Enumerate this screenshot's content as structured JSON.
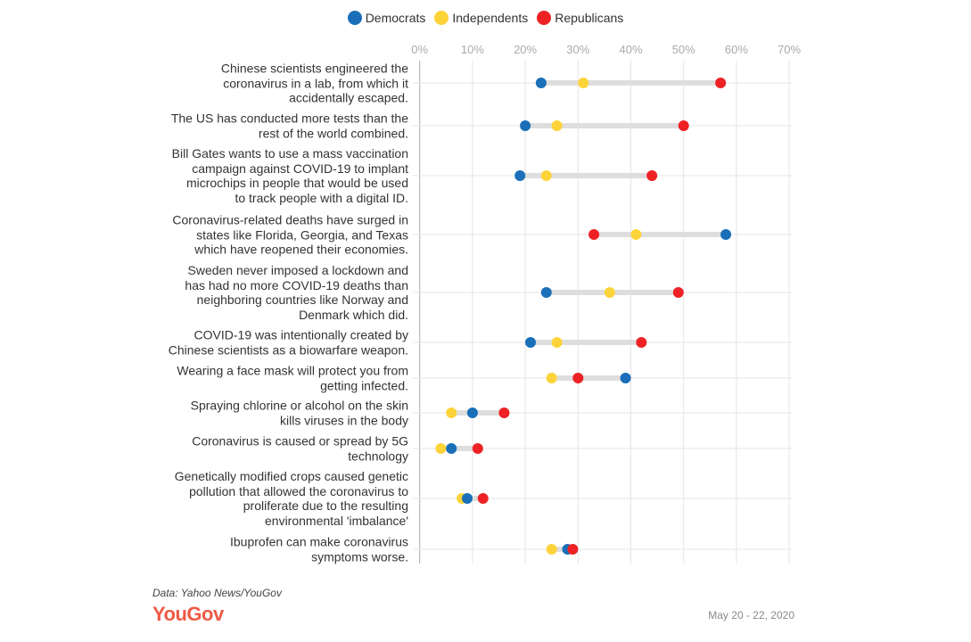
{
  "chart_data": {
    "type": "dot",
    "title": "",
    "xlabel": "",
    "ylabel": "",
    "xlim": [
      0,
      70
    ],
    "x_ticks": [
      "0%",
      "10%",
      "20%",
      "30%",
      "40%",
      "50%",
      "60%",
      "70%"
    ],
    "grid": true,
    "legend_position": "top",
    "series": [
      {
        "name": "Democrats",
        "color": "#1a6fb8",
        "values": [
          23,
          20,
          19,
          58,
          24,
          21,
          39,
          10,
          6,
          9,
          28
        ]
      },
      {
        "name": "Independents",
        "color": "#fdd33a",
        "values": [
          31,
          26,
          24,
          41,
          36,
          26,
          25,
          6,
          4,
          8,
          25
        ]
      },
      {
        "name": "Republicans",
        "color": "#ee2224",
        "values": [
          57,
          50,
          44,
          33,
          49,
          42,
          30,
          16,
          11,
          12,
          29
        ]
      }
    ],
    "categories": [
      "Chinese scientists engineered the\ncoronavirus in a lab, from which it\naccidentally escaped.",
      "The US has conducted more tests than the\nrest of the world combined.",
      "Bill Gates wants to use a mass vaccination\ncampaign against COVID-19 to implant\nmicrochips in people that would be used\nto track people with a digital ID.",
      "Coronavirus-related deaths have surged in\nstates like Florida, Georgia, and Texas\nwhich have reopened their economies.",
      "Sweden never imposed a lockdown and\nhas had no more COVID-19 deaths than\nneighboring countries like Norway and\nDenmark which did.",
      "COVID-19 was intentionally created by\nChinese scientists as a biowarfare weapon.",
      "Wearing a face mask will protect you from\ngetting infected.",
      "Spraying chlorine or alcohol on the skin\nkills viruses in the body",
      "Coronavirus is caused or spread by 5G\ntechnology",
      "Genetically modified crops caused genetic\npollution that allowed the coronavirus to\nproliferate due to the resulting\nenvironmental 'imbalance'",
      "Ibuprofen can make coronavirus\nsymptoms worse."
    ]
  },
  "footer": {
    "source": "Data: Yahoo News/YouGov",
    "logo": "YouGov",
    "date": "May 20 - 22, 2020"
  }
}
